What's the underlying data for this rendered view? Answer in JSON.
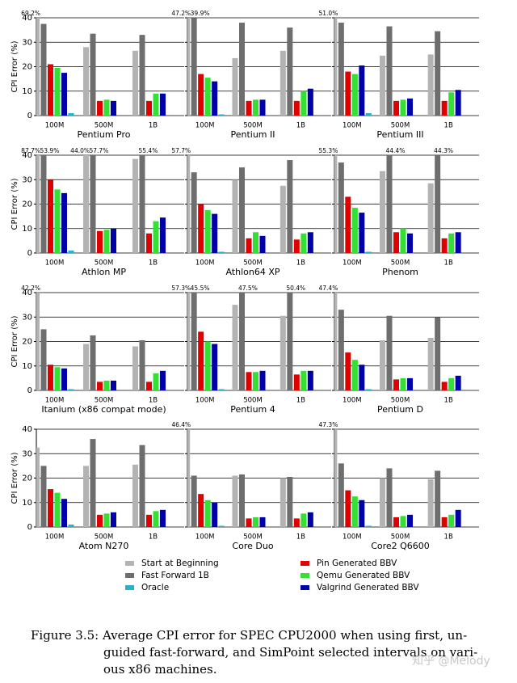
{
  "chart_data": [
    {
      "type": "bar",
      "title": "Pentium Pro",
      "ylabel": "CPI Error (%)",
      "categories": [
        "100M",
        "500M",
        "1B"
      ],
      "ylim": [
        0,
        40
      ],
      "yticks": [
        0,
        10,
        20,
        30,
        40
      ],
      "grid": true,
      "series": [
        {
          "values": [
            69.2,
            28,
            26.5
          ],
          "value_labels": [
            "69.2%",
            null,
            null
          ]
        },
        {
          "values": [
            37.5,
            33.5,
            33
          ]
        },
        {
          "values": [
            21,
            6,
            6
          ]
        },
        {
          "values": [
            19.5,
            6.5,
            9
          ]
        },
        {
          "values": [
            17.5,
            6,
            9
          ]
        },
        {
          "values": [
            1,
            null,
            null
          ]
        }
      ]
    },
    {
      "type": "bar",
      "title": "Pentium II",
      "categories": [
        "100M",
        "500M",
        "1B"
      ],
      "ylim": [
        0,
        40
      ],
      "yticks": [
        0,
        10,
        20,
        30,
        40
      ],
      "grid": true,
      "series": [
        {
          "values": [
            47.2,
            23.5,
            26.5
          ],
          "value_labels": [
            "47.2%",
            null,
            null
          ]
        },
        {
          "values": [
            39.9,
            38,
            36
          ],
          "value_labels": [
            "39.9%",
            null,
            null
          ]
        },
        {
          "values": [
            17,
            6,
            6
          ]
        },
        {
          "values": [
            15.5,
            6.5,
            10
          ]
        },
        {
          "values": [
            14,
            6.5,
            11
          ]
        },
        {
          "values": [
            0.5,
            null,
            null
          ]
        }
      ]
    },
    {
      "type": "bar",
      "title": "Pentium III",
      "categories": [
        "100M",
        "500M",
        "1B"
      ],
      "ylim": [
        0,
        40
      ],
      "yticks": [
        0,
        10,
        20,
        30,
        40
      ],
      "grid": true,
      "series": [
        {
          "values": [
            51.0,
            24.5,
            25
          ],
          "value_labels": [
            "51.0%",
            null,
            null
          ]
        },
        {
          "values": [
            38,
            36.5,
            34.5
          ]
        },
        {
          "values": [
            18,
            6,
            6
          ]
        },
        {
          "values": [
            17,
            6.5,
            9.5
          ]
        },
        {
          "values": [
            20.5,
            7,
            10.5
          ]
        },
        {
          "values": [
            1,
            null,
            null
          ]
        }
      ]
    },
    {
      "type": "bar",
      "title": "Athlon MP",
      "ylabel": "CPI Error (%)",
      "categories": [
        "100M",
        "500M",
        "1B"
      ],
      "ylim": [
        0,
        40
      ],
      "yticks": [
        0,
        10,
        20,
        30,
        40
      ],
      "grid": true,
      "series": [
        {
          "values": [
            87.7,
            44.0,
            38.5
          ],
          "value_labels": [
            "87.7%",
            "44.0%",
            null
          ]
        },
        {
          "values": [
            53.9,
            57.7,
            55.4
          ],
          "value_labels": [
            "53.9%",
            "57.7%",
            "55.4%"
          ]
        },
        {
          "values": [
            30,
            9,
            8
          ]
        },
        {
          "values": [
            26,
            9.5,
            13
          ]
        },
        {
          "values": [
            24.5,
            10,
            14.5
          ]
        },
        {
          "values": [
            1,
            null,
            null
          ]
        }
      ]
    },
    {
      "type": "bar",
      "title": "Athlon64 XP",
      "categories": [
        "100M",
        "500M",
        "1B"
      ],
      "ylim": [
        0,
        40
      ],
      "yticks": [
        0,
        10,
        20,
        30,
        40
      ],
      "grid": true,
      "series": [
        {
          "values": [
            57.7,
            30,
            27.5
          ],
          "value_labels": [
            "57.7%",
            null,
            null
          ]
        },
        {
          "values": [
            33,
            35,
            38
          ]
        },
        {
          "values": [
            20,
            6,
            5.5
          ]
        },
        {
          "values": [
            17.5,
            8.5,
            8
          ]
        },
        {
          "values": [
            16,
            7,
            8.5
          ]
        },
        {
          "values": [
            0.5,
            null,
            null
          ]
        }
      ]
    },
    {
      "type": "bar",
      "title": "Phenom",
      "categories": [
        "100M",
        "500M",
        "1B"
      ],
      "ylim": [
        0,
        40
      ],
      "yticks": [
        0,
        10,
        20,
        30,
        40
      ],
      "grid": true,
      "series": [
        {
          "values": [
            55.3,
            33.5,
            28.5
          ],
          "value_labels": [
            "55.3%",
            null,
            null
          ]
        },
        {
          "values": [
            37,
            44.4,
            44.3
          ],
          "value_labels": [
            null,
            "44.4%",
            "44.3%"
          ]
        },
        {
          "values": [
            23,
            8.5,
            6
          ]
        },
        {
          "values": [
            18.5,
            10,
            8
          ]
        },
        {
          "values": [
            16.5,
            8,
            8.5
          ]
        },
        {
          "values": [
            0.5,
            null,
            null
          ]
        }
      ]
    },
    {
      "type": "bar",
      "title": "Itanium (x86 compat mode)",
      "ylabel": "CPI Error (%)",
      "categories": [
        "100M",
        "500M",
        "1B"
      ],
      "ylim": [
        0,
        40
      ],
      "yticks": [
        0,
        10,
        20,
        30,
        40
      ],
      "grid": true,
      "series": [
        {
          "values": [
            42.2,
            19,
            18
          ],
          "value_labels": [
            "42.2%",
            null,
            null
          ]
        },
        {
          "values": [
            25,
            22.5,
            20.5
          ]
        },
        {
          "values": [
            10.5,
            3.5,
            3.5
          ]
        },
        {
          "values": [
            9.5,
            4,
            7
          ]
        },
        {
          "values": [
            9,
            4,
            8
          ]
        },
        {
          "values": [
            0.5,
            null,
            null
          ]
        }
      ]
    },
    {
      "type": "bar",
      "title": "Pentium 4",
      "categories": [
        "100M",
        "500M",
        "1B"
      ],
      "ylim": [
        0,
        40
      ],
      "yticks": [
        0,
        10,
        20,
        30,
        40
      ],
      "grid": true,
      "series": [
        {
          "values": [
            57.3,
            35,
            30.5
          ],
          "value_labels": [
            "57.3%",
            null,
            null
          ]
        },
        {
          "values": [
            45.5,
            47.5,
            50.4
          ],
          "value_labels": [
            "45.5%",
            "47.5%",
            "50.4%"
          ]
        },
        {
          "values": [
            24,
            7.5,
            6.5
          ]
        },
        {
          "values": [
            20,
            7.5,
            8
          ]
        },
        {
          "values": [
            19,
            8,
            8
          ]
        },
        {
          "values": [
            0.5,
            null,
            null
          ]
        }
      ]
    },
    {
      "type": "bar",
      "title": "Pentium D",
      "categories": [
        "100M",
        "500M",
        "1B"
      ],
      "ylim": [
        0,
        40
      ],
      "yticks": [
        0,
        10,
        20,
        30,
        40
      ],
      "grid": true,
      "series": [
        {
          "values": [
            47.4,
            20.5,
            21.5
          ],
          "value_labels": [
            "47.4%",
            null,
            null
          ]
        },
        {
          "values": [
            33,
            30.5,
            30
          ]
        },
        {
          "values": [
            15.5,
            4.5,
            3.5
          ]
        },
        {
          "values": [
            12.5,
            5,
            5
          ]
        },
        {
          "values": [
            10.5,
            5,
            6
          ]
        },
        {
          "values": [
            0.5,
            null,
            null
          ]
        }
      ]
    },
    {
      "type": "bar",
      "title": "Atom N270",
      "ylabel": "CPI Error (%)",
      "categories": [
        "100M",
        "500M",
        "1B"
      ],
      "ylim": [
        0,
        40
      ],
      "yticks": [
        0,
        10,
        20,
        30,
        40
      ],
      "grid": true,
      "series": [
        {
          "values": [
            32.5,
            25,
            25.5
          ]
        },
        {
          "values": [
            25,
            36,
            33.5
          ]
        },
        {
          "values": [
            15.5,
            5,
            5
          ]
        },
        {
          "values": [
            14,
            5.5,
            6.5
          ]
        },
        {
          "values": [
            11.5,
            6,
            7
          ]
        },
        {
          "values": [
            1,
            null,
            null
          ]
        }
      ]
    },
    {
      "type": "bar",
      "title": "Core Duo",
      "categories": [
        "100M",
        "500M",
        "1B"
      ],
      "ylim": [
        0,
        40
      ],
      "yticks": [
        0,
        10,
        20,
        30,
        40
      ],
      "grid": true,
      "series": [
        {
          "values": [
            46.4,
            21,
            20
          ],
          "value_labels": [
            "46.4%",
            null,
            null
          ]
        },
        {
          "values": [
            21,
            21.5,
            20.5
          ]
        },
        {
          "values": [
            13.5,
            3.5,
            3.5
          ]
        },
        {
          "values": [
            11,
            4,
            5.5
          ]
        },
        {
          "values": [
            10,
            4,
            6
          ]
        },
        {
          "values": [
            0.5,
            null,
            null
          ]
        }
      ]
    },
    {
      "type": "bar",
      "title": "Core2 Q6600",
      "categories": [
        "100M",
        "500M",
        "1B"
      ],
      "ylim": [
        0,
        40
      ],
      "yticks": [
        0,
        10,
        20,
        30,
        40
      ],
      "grid": true,
      "series": [
        {
          "values": [
            47.3,
            20,
            19.5
          ],
          "value_labels": [
            "47.3%",
            null,
            null
          ]
        },
        {
          "values": [
            26,
            24,
            23
          ]
        },
        {
          "values": [
            15,
            4,
            4
          ]
        },
        {
          "values": [
            12.5,
            4.5,
            5
          ]
        },
        {
          "values": [
            11,
            5,
            7
          ]
        },
        {
          "values": [
            0.5,
            null,
            null
          ]
        }
      ]
    }
  ],
  "legend": {
    "entries": [
      {
        "name": "Start at Beginning",
        "color": "#b3b3b3"
      },
      {
        "name": "Fast Forward 1B",
        "color": "#6e6e6e"
      },
      {
        "name": "Pin Generated BBV",
        "color": "#e00000"
      },
      {
        "name": "Qemu Generated BBV",
        "color": "#33e033"
      },
      {
        "name": "Valgrind Generated BBV",
        "color": "#0000a8"
      },
      {
        "name": "Oracle",
        "color": "#22b4c8"
      }
    ]
  },
  "caption": [
    "Figure 3.5: Average CPI error for SPEC CPU2000 when using first, un-",
    "guided fast-forward, and SimPoint selected intervals on vari-",
    "ous x86 machines."
  ],
  "watermark": "知乎 @Melody"
}
